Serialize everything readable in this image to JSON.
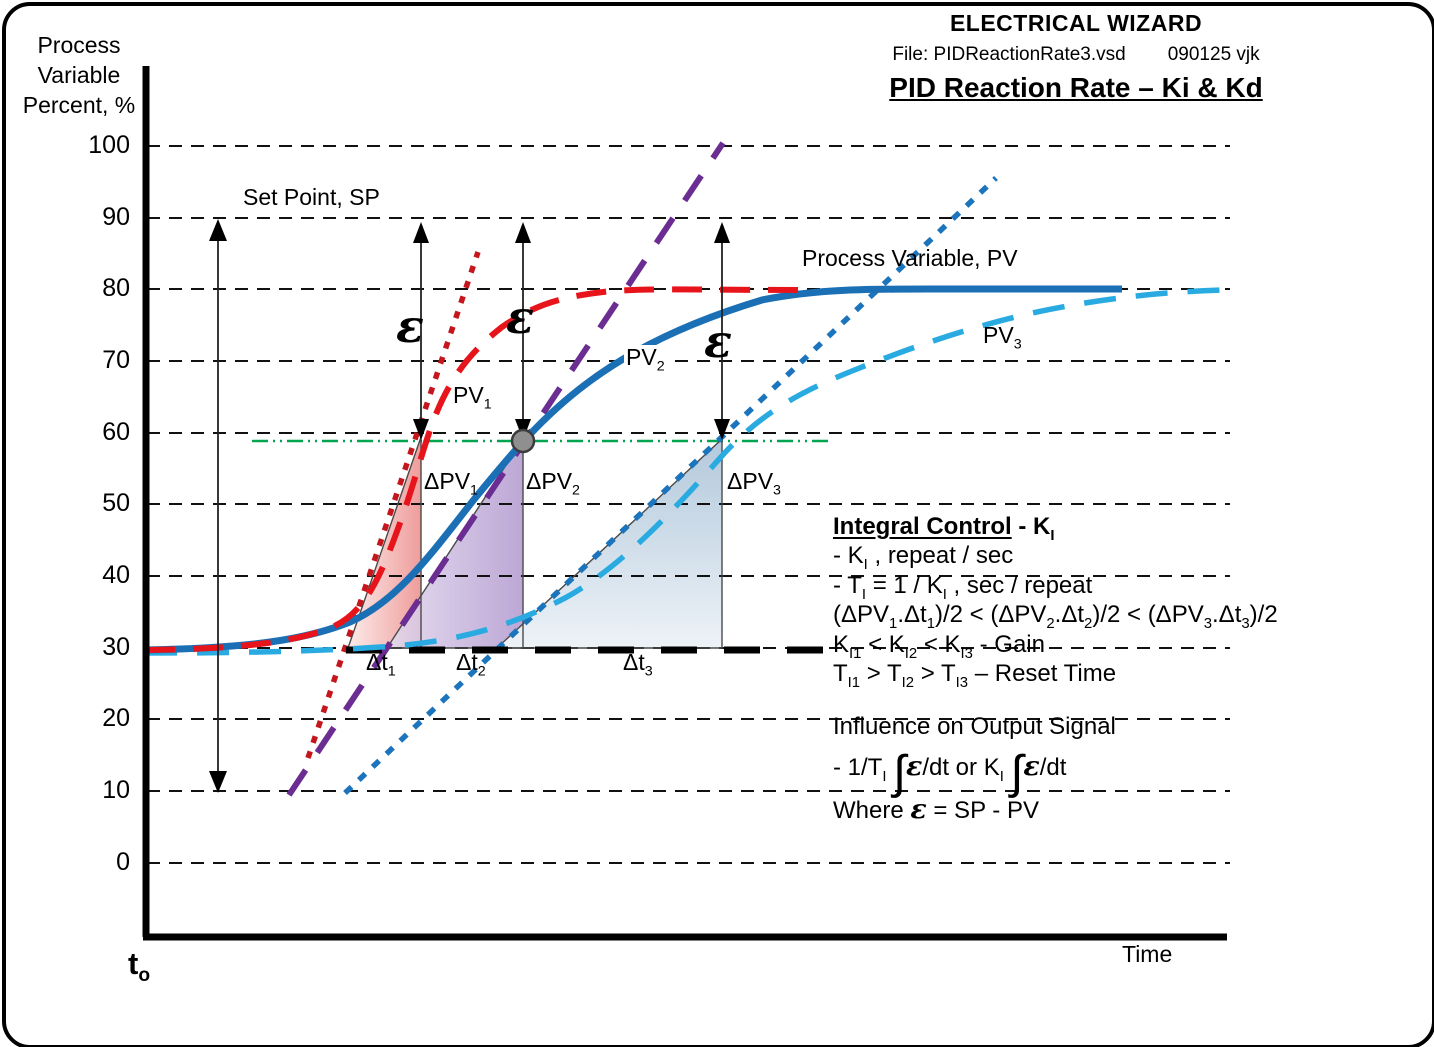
{
  "header": {
    "brand": "ELECTRICAL WIZARD",
    "file": "File: PIDReactionRate3.vsd",
    "rev": "090125 vjk",
    "title": "PID Reaction Rate – Ki & Kd"
  },
  "y_axis": {
    "title_lines": [
      "Process",
      "Variable",
      "Percent, %"
    ],
    "ticks": [
      "100",
      "90",
      "80",
      "70",
      "60",
      "50",
      "40",
      "30",
      "20",
      "10",
      "0"
    ]
  },
  "x_axis": {
    "label": "Time",
    "origin": "t_{o}"
  },
  "labels": {
    "set_point": "Set Point, SP",
    "process_variable": "Process Variable, PV",
    "pv1": "PV_{1}",
    "pv2": "PV_{2}",
    "pv3": "PV_{3}",
    "epsilon": "ε",
    "dpv1": "ΔPV_{1}",
    "dpv2": "ΔPV_{2}",
    "dpv3": "ΔPV_{3}",
    "dt1": "Δt_{1}",
    "dt2": "Δt_{2}",
    "dt3": "Δt_{3}"
  },
  "integral_block": {
    "title": "__Integral Control__ - K_{I}",
    "lines": [
      "- K_{I} , repeat / sec",
      "- T_{I} = 1 / K_{I} , sec / repeat",
      "(ΔPV_{1}.Δt_{1})/2 < (ΔPV_{2}.Δt_{2})/2 < (ΔPV_{3}.Δt_{3})/2",
      "K_{I1} < K_{I2} < K_{I3} - Gain",
      "T_{I1} > T_{I2} > T_{I3} – Reset Time"
    ]
  },
  "influence_block": {
    "line1": "Influence on Output Signal",
    "line2": "- 1/T_{I} ∫*ε*/dt or K_{I} ∫*ε*/dt",
    "line3": "Where *ε* = SP - PV"
  },
  "colors": {
    "pv1_red": "#E8141C",
    "pv1_tangent_red": "#C4161C",
    "pv2_blue": "#1B6FB5",
    "pv3_tangent_blue": "#1C75BC",
    "pv3_cyan": "#29ABE2",
    "pv2_tangent_purple": "#6B2D91",
    "epsilon_level_green": "#00A550",
    "triangle1_fill": "#EE9D9B",
    "triangle2_fill": "#B39BD0",
    "triangle3_fill": "#B3C9DC"
  },
  "chart_data": {
    "type": "line",
    "title": "PID Reaction Rate – Ki & Kd",
    "xlabel": "Time",
    "ylabel": "Process Variable Percent, %",
    "ylim": [
      0,
      100
    ],
    "y_ticks": [
      100,
      90,
      80,
      70,
      60,
      50,
      40,
      30,
      20,
      10,
      0
    ],
    "grid": "dashed horizontal",
    "set_point_pct": 90,
    "initial_pv_pct": 30,
    "final_pv_pct": 80,
    "epsilon_reference_level_pct": 59,
    "series": [
      {
        "name": "PV1",
        "style": "dashed red, fastest response",
        "points_time_pct": [
          [
            0,
            30
          ],
          [
            14,
            31
          ],
          [
            18,
            35
          ],
          [
            23,
            46
          ],
          [
            26,
            60
          ],
          [
            29,
            68
          ],
          [
            33,
            75
          ],
          [
            40,
            79
          ],
          [
            44,
            80
          ],
          [
            61,
            80
          ]
        ]
      },
      {
        "name": "PV2",
        "style": "solid blue, medium response",
        "points_time_pct": [
          [
            0,
            30
          ],
          [
            14,
            31
          ],
          [
            20,
            35
          ],
          [
            26,
            43
          ],
          [
            30,
            50
          ],
          [
            35,
            59
          ],
          [
            41,
            66
          ],
          [
            48,
            72
          ],
          [
            56,
            77
          ],
          [
            65,
            79
          ],
          [
            74,
            80
          ],
          [
            90,
            80
          ]
        ]
      },
      {
        "name": "PV3",
        "style": "dashed cyan, slowest response",
        "points_time_pct": [
          [
            0,
            30
          ],
          [
            19,
            30
          ],
          [
            28,
            32
          ],
          [
            37,
            37
          ],
          [
            44,
            43
          ],
          [
            49,
            50
          ],
          [
            53,
            57
          ],
          [
            56,
            60
          ],
          [
            63,
            66
          ],
          [
            70,
            70
          ],
          [
            79,
            74
          ],
          [
            89,
            77
          ],
          [
            99,
            80
          ]
        ]
      }
    ],
    "tangent_lines": [
      {
        "name": "PV1 tangent",
        "reaches_pct": 85,
        "base_time_pct": 19,
        "epsilon_time_pct": 26
      },
      {
        "name": "PV2 tangent",
        "reaches_pct": 100,
        "base_time_pct": 22,
        "epsilon_time_pct": 35
      },
      {
        "name": "PV3 tangent",
        "reaches_pct": 95,
        "base_time_pct": 33,
        "epsilon_time_pct": 53
      }
    ],
    "annotations": [
      "ΔPV1/Δt1 triangle",
      "ΔPV2/Δt2 triangle",
      "ΔPV3/Δt3 triangle",
      "ε = SP - PV arrows at 90→59%"
    ]
  }
}
